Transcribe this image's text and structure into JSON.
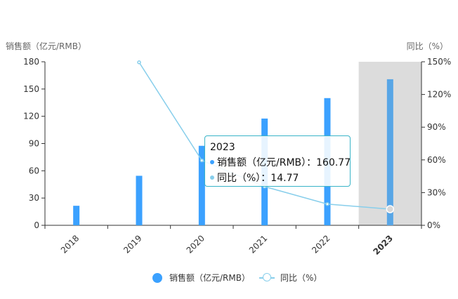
{
  "chart_data": {
    "type": "bar",
    "categories": [
      "2018",
      "2019",
      "2020",
      "2021",
      "2022",
      "2023"
    ],
    "series": [
      {
        "name": "销售额（亿元/RMB）",
        "type": "bar",
        "axis": "left",
        "values": [
          21.5,
          54.5,
          87.5,
          117.5,
          140,
          160.77
        ],
        "color": "#3ba1ff"
      },
      {
        "name": "同比（%）",
        "type": "line",
        "axis": "right",
        "values": [
          null,
          149.5,
          59.5,
          35.5,
          19.5,
          14.77
        ],
        "color": "#87ceeb"
      }
    ],
    "ylabel": "销售额（亿元/RMB）",
    "ylabel_right": "同比（%）",
    "ylim": [
      0,
      180
    ],
    "yticks": [
      0,
      30,
      60,
      90,
      120,
      150,
      180
    ],
    "ylim_right": [
      0,
      150
    ],
    "yticks_right": [
      "0%",
      "30%",
      "60%",
      "90%",
      "120%",
      "150%"
    ],
    "highlighted_category": "2023",
    "legend_position": "bottom",
    "grid": false
  },
  "tooltip": {
    "title": "2023",
    "rows": [
      {
        "label": "销售额（亿元/RMB）：160.77",
        "color": "#3ba1ff"
      },
      {
        "label": "同比（%）：14.77",
        "color": "#87ceeb"
      }
    ]
  },
  "legend": {
    "items": [
      {
        "label": "销售额（亿元/RMB）",
        "color": "#3ba1ff"
      },
      {
        "label": "同比（%）",
        "color": "#87ceeb"
      }
    ]
  }
}
